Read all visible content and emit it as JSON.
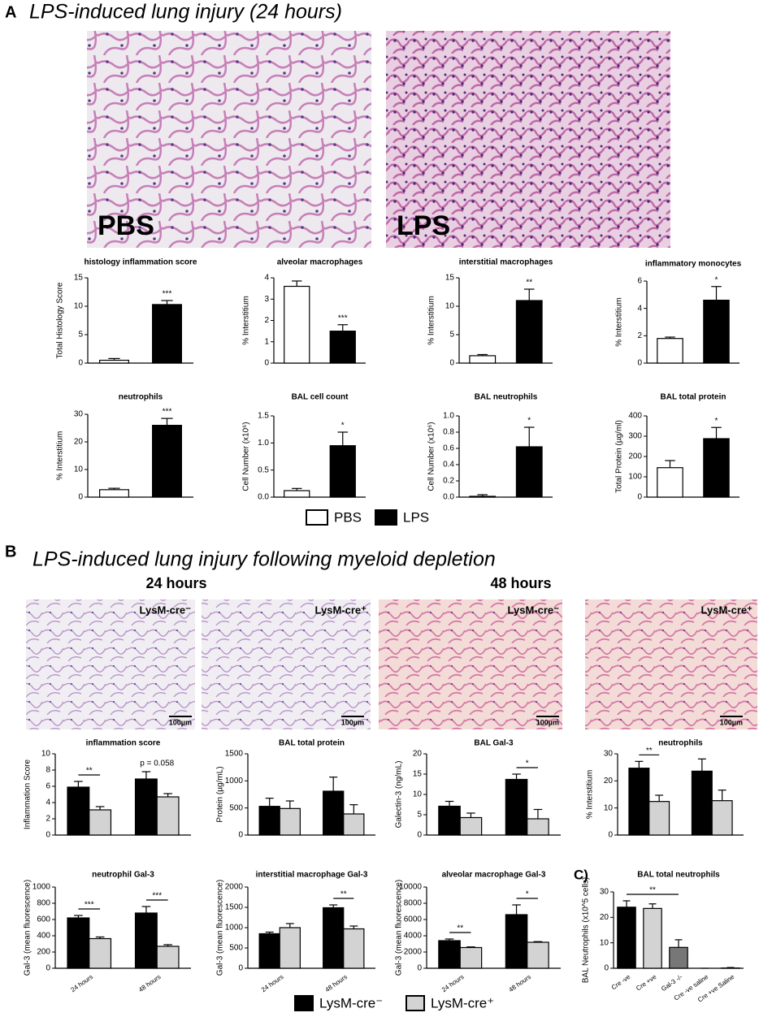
{
  "panel_a": {
    "label": "A",
    "title": "LPS-induced lung injury (24 hours)",
    "images": [
      {
        "label": "PBS"
      },
      {
        "label": "LPS"
      }
    ]
  },
  "legend_a": [
    {
      "name": "PBS",
      "color": "#ffffff"
    },
    {
      "name": "LPS",
      "color": "#000000"
    }
  ],
  "panel_b": {
    "label": "B",
    "title": "LPS-induced lung injury following myeloid depletion",
    "time_points": [
      "24 hours",
      "48 hours"
    ],
    "images": [
      {
        "label": "LysM-cre⁻",
        "scale": "100µm"
      },
      {
        "label": "LysM-cre⁺",
        "scale": "100µm"
      },
      {
        "label": "LysM-cre⁻",
        "scale": "100µm"
      },
      {
        "label": "LysM-cre⁺",
        "scale": "100µm"
      }
    ]
  },
  "legend_b": [
    {
      "name": "LysM-cre⁻",
      "color": "#000000"
    },
    {
      "name": "LysM-cre⁺",
      "color": "#d3d3d3"
    }
  ],
  "panel_c": {
    "label": "C)"
  },
  "chart_data": [
    {
      "type": "bar",
      "title": "histology inflammation score",
      "ylabel": "Total Histology Score",
      "categories": [
        null,
        null
      ],
      "values": [
        0.5,
        10.3
      ],
      "errors": [
        0.3,
        0.7
      ],
      "sig": [
        null,
        "***"
      ],
      "ylim": [
        0,
        15
      ],
      "yticks": [
        0,
        5,
        10,
        15
      ]
    },
    {
      "type": "bar",
      "title": "alveolar macrophages",
      "ylabel": "% Interstitium",
      "categories": [
        null,
        null
      ],
      "values": [
        3.6,
        1.5
      ],
      "errors": [
        0.25,
        0.3
      ],
      "sig": [
        null,
        "***"
      ],
      "ylim": [
        0,
        4
      ],
      "yticks": [
        0,
        1,
        2,
        3,
        4
      ]
    },
    {
      "type": "bar",
      "title": "interstitial macrophages",
      "ylabel": "% Interstitium",
      "categories": [
        null,
        null
      ],
      "values": [
        1.3,
        11
      ],
      "errors": [
        0.2,
        2
      ],
      "sig": [
        null,
        "**"
      ],
      "ylim": [
        0,
        15
      ],
      "yticks": [
        0,
        5,
        10,
        15
      ]
    },
    {
      "type": "bar",
      "title": "inflammatory monocytes",
      "ylabel": "% Interstitium",
      "categories": [
        null,
        null
      ],
      "values": [
        1.8,
        4.6
      ],
      "errors": [
        0.1,
        1.0
      ],
      "sig": [
        null,
        "*"
      ],
      "ylim": [
        0,
        6
      ],
      "yticks": [
        0,
        2,
        4,
        6
      ]
    },
    {
      "type": "bar",
      "title": "neutrophils",
      "ylabel": "% Interstitium",
      "categories": [
        null,
        null
      ],
      "values": [
        2.7,
        26
      ],
      "errors": [
        0.5,
        2.5
      ],
      "sig": [
        null,
        "***"
      ],
      "ylim": [
        0,
        30
      ],
      "yticks": [
        0,
        10,
        20,
        30
      ]
    },
    {
      "type": "bar",
      "title": "BAL cell count",
      "ylabel": "Cell Number (x10⁶)",
      "categories": [
        null,
        null
      ],
      "values": [
        0.12,
        0.95
      ],
      "errors": [
        0.04,
        0.25
      ],
      "sig": [
        null,
        "*"
      ],
      "ylim": [
        0,
        1.5
      ],
      "yticks": [
        {
          "value": 0,
          "label": "0.0"
        },
        0.5,
        {
          "value": 1,
          "label": "1.0"
        },
        1.5
      ]
    },
    {
      "type": "bar",
      "title": "BAL neutrophils",
      "ylabel": "Cell Number (x10⁶)",
      "categories": [
        null,
        null
      ],
      "values": [
        0.01,
        0.62
      ],
      "errors": [
        0.02,
        0.24
      ],
      "sig": [
        null,
        "*"
      ],
      "ylim": [
        0,
        1
      ],
      "yticks": [
        {
          "value": 0,
          "label": "0.0"
        },
        0.2,
        0.4,
        0.6,
        0.8,
        {
          "value": 1,
          "label": "1.0"
        }
      ]
    },
    {
      "type": "bar",
      "title": "BAL total protein",
      "ylabel": "Total Protein (µg/ml)",
      "categories": [
        null,
        null
      ],
      "values": [
        145,
        288
      ],
      "errors": [
        35,
        55
      ],
      "sig": [
        null,
        "*"
      ],
      "ylim": [
        0,
        400
      ],
      "yticks": [
        0,
        100,
        200,
        300,
        400
      ]
    },
    {
      "type": "bar",
      "title": "inflammation score",
      "ylabel": "Inflammation Score",
      "categories": [
        null,
        null
      ],
      "series": [
        {
          "values": [
            5.9,
            6.9
          ],
          "errors": [
            0.7,
            0.9
          ]
        },
        {
          "values": [
            3.1,
            4.7
          ],
          "errors": [
            0.4,
            0.4
          ]
        }
      ],
      "sig": [
        "**",
        null
      ],
      "notes": [
        null,
        "p = 0.058"
      ],
      "ylim": [
        0,
        10
      ],
      "yticks": [
        0,
        2,
        4,
        6,
        8,
        10
      ]
    },
    {
      "type": "bar",
      "title": "BAL total protein",
      "ylabel": "Protein (µg/mL)",
      "categories": [
        null,
        null
      ],
      "series": [
        {
          "values": [
            530,
            810
          ],
          "errors": [
            150,
            260
          ]
        },
        {
          "values": [
            490,
            390
          ],
          "errors": [
            140,
            170
          ]
        }
      ],
      "ylim": [
        0,
        1500
      ],
      "yticks": [
        0,
        500,
        1000,
        1500
      ]
    },
    {
      "type": "bar",
      "title": "BAL Gal-3",
      "ylabel": "Galectin-3 (ng/mL)",
      "categories": [
        null,
        null
      ],
      "series": [
        {
          "values": [
            7.1,
            13.7
          ],
          "errors": [
            1.2,
            1.3
          ]
        },
        {
          "values": [
            4.3,
            4.0
          ],
          "errors": [
            1.1,
            2.3
          ]
        }
      ],
      "sig": [
        null,
        "*"
      ],
      "ylim": [
        0,
        20
      ],
      "yticks": [
        0,
        5,
        10,
        15,
        20
      ]
    },
    {
      "type": "bar",
      "title": "neutrophils",
      "ylabel": "% Interstitium",
      "categories": [
        null,
        null
      ],
      "series": [
        {
          "values": [
            24.7,
            23.6
          ],
          "errors": [
            2.5,
            4.5
          ]
        },
        {
          "values": [
            12.4,
            12.7
          ],
          "errors": [
            2.3,
            3.9
          ]
        }
      ],
      "sig": [
        "**",
        null
      ],
      "ylim": [
        0,
        30
      ],
      "yticks": [
        0,
        10,
        20,
        30
      ]
    },
    {
      "type": "bar",
      "title": "neutrophil Gal-3",
      "ylabel": "Gal-3 (mean fluorescence)",
      "categories": [
        "24 hours",
        "48 hours"
      ],
      "series": [
        {
          "values": [
            620,
            680
          ],
          "errors": [
            30,
            80
          ]
        },
        {
          "values": [
            365,
            270
          ],
          "errors": [
            20,
            20
          ]
        }
      ],
      "sig": [
        "***",
        "***"
      ],
      "ylim": [
        0,
        1000
      ],
      "yticks": [
        0,
        200,
        400,
        600,
        800,
        1000
      ]
    },
    {
      "type": "bar",
      "title": "interstitial macrophage Gal-3",
      "ylabel": "Gal-3 (mean fluorescence)",
      "categories": [
        "24 hours",
        "48 hours"
      ],
      "series": [
        {
          "values": [
            850,
            1490
          ],
          "errors": [
            40,
            70
          ]
        },
        {
          "values": [
            1000,
            970
          ],
          "errors": [
            100,
            70
          ]
        }
      ],
      "sig": [
        null,
        "**"
      ],
      "ylim": [
        0,
        2000
      ],
      "yticks": [
        0,
        500,
        1000,
        1500,
        2000
      ]
    },
    {
      "type": "bar",
      "title": "alveolar macrophage Gal-3",
      "ylabel": "Gal-3 (mean fluorescence)",
      "categories": [
        "24 hours",
        "48 hours"
      ],
      "series": [
        {
          "values": [
            3400,
            6600
          ],
          "errors": [
            200,
            1200
          ]
        },
        {
          "values": [
            2550,
            3200
          ],
          "errors": [
            80,
            80
          ]
        }
      ],
      "sig": [
        "**",
        "*"
      ],
      "ylim": [
        0,
        10000
      ],
      "yticks": [
        0,
        2000,
        4000,
        6000,
        8000,
        10000
      ]
    },
    {
      "type": "bar",
      "title": "BAL total neutrophils",
      "ylabel": "BAL Neutrophils (x10^5 cells)",
      "categories": [
        "Cre -ve",
        "Cre +ve",
        "Gal-3 -/-",
        "Cre -ve saline",
        "Cre +ve Saline"
      ],
      "values": [
        24,
        23.5,
        8.2,
        0,
        0.1
      ],
      "errors": [
        2.5,
        1.8,
        3,
        0,
        0.2
      ],
      "colors": [
        "#000000",
        "#d3d3d3",
        "#777777",
        "#000000",
        "#d3d3d3"
      ],
      "bracket": {
        "text": "**",
        "from": 0,
        "to": 2
      },
      "ylim": [
        0,
        30
      ],
      "yticks": [
        0,
        10,
        20,
        30
      ]
    }
  ]
}
